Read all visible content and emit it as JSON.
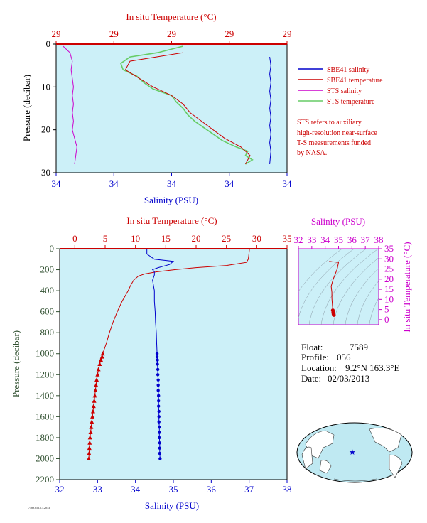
{
  "colors": {
    "background": "#ccf0f8",
    "temperature": "#cc0000",
    "salinity": "#0000cc",
    "sts_salinity": "#cc00cc",
    "sts_temperature": "#66cc66",
    "pressure": "#2f4f2f",
    "ts_axis": "#cc00cc"
  },
  "chart_data": [
    {
      "id": "near-surface",
      "type": "line",
      "top_axis_label": "In situ Temperature (°C)",
      "bottom_axis_label": "Salinity (PSU)",
      "ylabel": "Pressure (decibar)",
      "top_ticks": [
        "29",
        "29",
        "29",
        "29",
        "29"
      ],
      "bottom_ticks": [
        "34",
        "34",
        "34",
        "34",
        "34"
      ],
      "y_ticks": [
        "0",
        "10",
        "20",
        "30"
      ],
      "ylim": [
        30,
        0
      ],
      "xlim": [
        0,
        1
      ],
      "legend": {
        "position": "right",
        "entries": [
          "SBE41 salinity",
          "SBE41 temperature",
          "STS salinity",
          "STS temperature"
        ]
      },
      "note": [
        "STS refers to auxiliary",
        "high-resolution near-surface",
        "T-S measurements funded",
        "by NASA."
      ],
      "series": [
        {
          "name": "STS temperature",
          "x": [
            0.55,
            0.44,
            0.32,
            0.28,
            0.29,
            0.35,
            0.38,
            0.42,
            0.5,
            0.52,
            0.55,
            0.57,
            0.6,
            0.64,
            0.68,
            0.72,
            0.78,
            0.83,
            0.82,
            0.85,
            0.82
          ],
          "y": [
            0.5,
            2,
            3,
            4.5,
            6,
            7.5,
            9,
            10.5,
            12,
            13.5,
            15,
            16.5,
            18,
            19.5,
            21,
            22.5,
            24,
            25,
            26,
            27,
            28
          ]
        },
        {
          "name": "STS salinity",
          "x": [
            0.03,
            0.06,
            0.07,
            0.065,
            0.07,
            0.075,
            0.07,
            0.075,
            0.07,
            0.075,
            0.07,
            0.09,
            0.08
          ],
          "y": [
            0.5,
            2,
            4,
            6,
            8,
            10,
            12,
            14,
            16,
            18,
            20,
            24,
            28
          ]
        },
        {
          "name": "SBE41 temperature",
          "x": [
            0.55,
            0.32,
            0.3,
            0.36,
            0.42,
            0.5,
            0.55,
            0.58,
            0.63,
            0.68,
            0.73,
            0.8,
            0.84,
            0.82
          ],
          "y": [
            2,
            4,
            6,
            8,
            10,
            12,
            14,
            16,
            18,
            20,
            22,
            24,
            26,
            28
          ]
        },
        {
          "name": "SBE41 salinity",
          "x": [
            0.925,
            0.93,
            0.925,
            0.93,
            0.925,
            0.93,
            0.925,
            0.93,
            0.925,
            0.93,
            0.925,
            0.93,
            0.925
          ],
          "y": [
            3,
            5,
            7,
            9,
            11,
            13,
            15,
            17,
            19,
            21,
            23,
            25,
            28
          ]
        }
      ]
    },
    {
      "id": "full-profile",
      "type": "line",
      "top_axis_label": "In situ Temperature (°C)",
      "bottom_axis_label": "Salinity (PSU)",
      "ylabel": "Pressure (decibar)",
      "top_ticks": [
        "0",
        "5",
        "10",
        "15",
        "20",
        "25",
        "30",
        "35"
      ],
      "bottom_ticks": [
        "32",
        "33",
        "34",
        "35",
        "36",
        "37",
        "38"
      ],
      "y_ticks": [
        "0",
        "200",
        "400",
        "600",
        "800",
        "1000",
        "1200",
        "1400",
        "1600",
        "1800",
        "2000",
        "2200"
      ],
      "temperature_lim": [
        -2.5,
        35
      ],
      "salinity_lim": [
        32,
        38
      ],
      "ylim": [
        2200,
        0
      ],
      "series": [
        {
          "name": "Temperature",
          "axis": "temperature",
          "p": [
            5,
            60,
            100,
            130,
            160,
            180,
            200,
            220,
            240,
            260,
            300,
            350,
            400,
            500,
            600,
            700,
            800,
            900,
            1000
          ],
          "v": [
            28.8,
            28.7,
            28.6,
            28.3,
            25.0,
            20.0,
            16.5,
            13.5,
            11.5,
            10.5,
            9.7,
            9.2,
            8.8,
            7.8,
            7.0,
            6.3,
            5.7,
            5.2,
            4.6
          ]
        },
        {
          "name": "Temperature (bottle samples)",
          "axis": "temperature",
          "markers": "triangle",
          "p": [
            1000,
            1030,
            1060,
            1100,
            1150,
            1200,
            1250,
            1300,
            1350,
            1400,
            1450,
            1500,
            1550,
            1600,
            1650,
            1700,
            1750,
            1800,
            1850,
            1900,
            1950,
            2000
          ],
          "v": [
            4.6,
            4.5,
            4.3,
            4.1,
            3.9,
            3.75,
            3.6,
            3.5,
            3.4,
            3.3,
            3.2,
            3.1,
            3.0,
            2.9,
            2.8,
            2.7,
            2.6,
            2.5,
            2.45,
            2.4,
            2.35,
            2.3
          ]
        },
        {
          "name": "Salinity",
          "axis": "salinity",
          "p": [
            0,
            50,
            100,
            120,
            150,
            180,
            200,
            220,
            250,
            300,
            400,
            500,
            600,
            700,
            800,
            900,
            1000
          ],
          "v": [
            34.3,
            34.3,
            34.5,
            35.0,
            34.9,
            34.6,
            34.45,
            34.5,
            34.5,
            34.45,
            34.5,
            34.5,
            34.52,
            34.53,
            34.55,
            34.56,
            34.57
          ]
        },
        {
          "name": "Salinity (bottle samples)",
          "axis": "salinity",
          "markers": "circle",
          "p": [
            1000,
            1030,
            1060,
            1100,
            1150,
            1200,
            1250,
            1300,
            1350,
            1400,
            1450,
            1500,
            1550,
            1600,
            1650,
            1700,
            1750,
            1800,
            1850,
            1900,
            1950,
            2000
          ],
          "v": [
            34.57,
            34.57,
            34.58,
            34.58,
            34.59,
            34.59,
            34.6,
            34.6,
            34.6,
            34.61,
            34.61,
            34.61,
            34.62,
            34.62,
            34.62,
            34.63,
            34.63,
            34.63,
            34.64,
            34.64,
            34.64,
            34.65
          ]
        }
      ]
    },
    {
      "id": "ts-diagram",
      "type": "scatter",
      "top_axis_label": "Salinity (PSU)",
      "right_axis_label": "In situ Temperature (°C)",
      "top_ticks": [
        "32",
        "33",
        "34",
        "35",
        "36",
        "37",
        "38"
      ],
      "right_ticks": [
        "0",
        "5",
        "10",
        "15",
        "20",
        "25",
        "30",
        "35"
      ],
      "xlim": [
        32,
        38
      ],
      "ylim": [
        -2.5,
        35
      ],
      "series": [
        {
          "name": "T-S curve",
          "s": [
            34.3,
            34.5,
            35.0,
            34.9,
            34.6,
            34.45,
            34.5,
            34.5,
            34.55,
            34.57,
            34.6,
            34.62,
            34.65
          ],
          "t": [
            28.8,
            28.6,
            28.3,
            25.0,
            20.0,
            16.5,
            13.5,
            10.5,
            6.5,
            4.6,
            3.5,
            2.8,
            2.3
          ]
        }
      ]
    }
  ],
  "info": {
    "float_label": "Float:",
    "float": "7589",
    "profile_label": "Profile:",
    "profile": "056",
    "location_label": "Location:",
    "location": "9.2°N  163.3°E",
    "date_label": "Date:",
    "date": "02/03/2013"
  },
  "map": {
    "marker_icon": "star-icon",
    "marker_color": "#0000cc"
  },
  "footer_code": "7589.056.5.1.2013"
}
